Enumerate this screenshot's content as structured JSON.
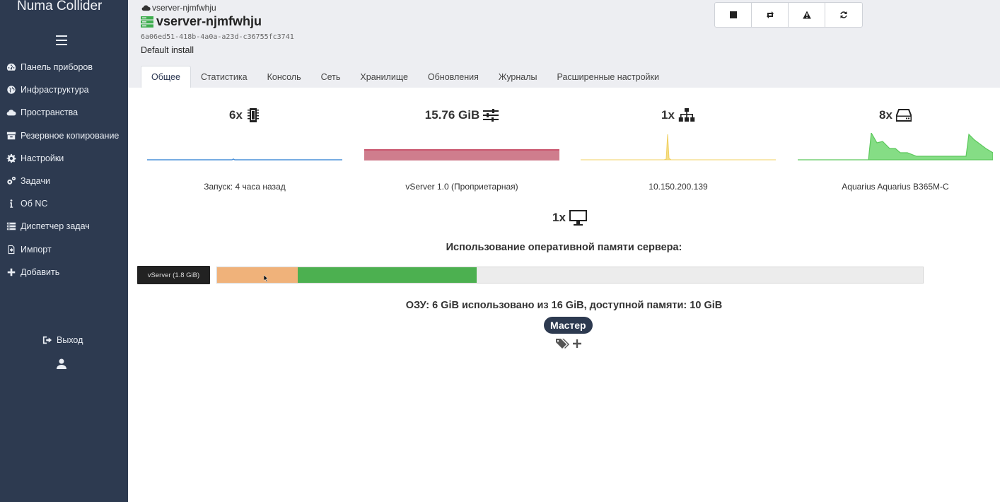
{
  "app": {
    "title": "Numa Collider"
  },
  "sidebar": {
    "items": [
      {
        "label": "Панель приборов",
        "icon": "dashboard-icon"
      },
      {
        "label": "Инфраструктура",
        "icon": "globe-icon"
      },
      {
        "label": "Пространства",
        "icon": "cloud-icon"
      },
      {
        "label": "Резервное копирование",
        "icon": "archive-icon"
      },
      {
        "label": "Настройки",
        "icon": "gear-icon"
      },
      {
        "label": "Задачи",
        "icon": "gears-icon"
      },
      {
        "label": "Об NC",
        "icon": "info-icon"
      },
      {
        "label": "Диспетчер задач",
        "icon": "tasks-icon"
      },
      {
        "label": "Импорт",
        "icon": "file-import-icon"
      },
      {
        "label": "Добавить",
        "icon": "plus-icon"
      }
    ],
    "logout_label": "Выход"
  },
  "header": {
    "breadcrumb": "vserver-njmfwhju",
    "title": "vserver-njmfwhju",
    "uuid": "6a06ed51-418b-4a0a-a23d-c36755fc3741",
    "description": "Default install",
    "actions": [
      "stop-icon",
      "restart-icon",
      "warning-icon",
      "refresh-icon"
    ]
  },
  "tabs": [
    "Общее",
    "Статистика",
    "Консоль",
    "Сеть",
    "Хранилище",
    "Обновления",
    "Журналы",
    "Расширенные настройки"
  ],
  "stats": {
    "cpu": {
      "value": "6x",
      "caption": "Запуск: 4 часа назад",
      "color": "#4a90d9"
    },
    "memory": {
      "value": "15.76 GiB",
      "caption": "vServer 1.0 (Проприетарная)",
      "color": "#c9566e"
    },
    "network": {
      "value": "1x",
      "caption": "10.150.200.139",
      "color": "#f0d060"
    },
    "disks": {
      "value": "8x",
      "caption": "Aquarius Aquarius B365M-C",
      "color": "#5cc85c"
    }
  },
  "displays": {
    "value": "1x"
  },
  "memory_usage": {
    "title": "Использование оперативной памяти сервера:",
    "label": "vServer (1.8 GiB)",
    "segments": [
      {
        "name": "vserver",
        "fraction": 0.114,
        "color": "#f0b27a"
      },
      {
        "name": "used",
        "fraction": 0.254,
        "color": "#4cb050"
      }
    ],
    "summary": "ОЗУ: 6 GiB использовано из 16 GiB, доступной памяти: 10 GiB"
  },
  "badge": {
    "label": "Мастер"
  }
}
